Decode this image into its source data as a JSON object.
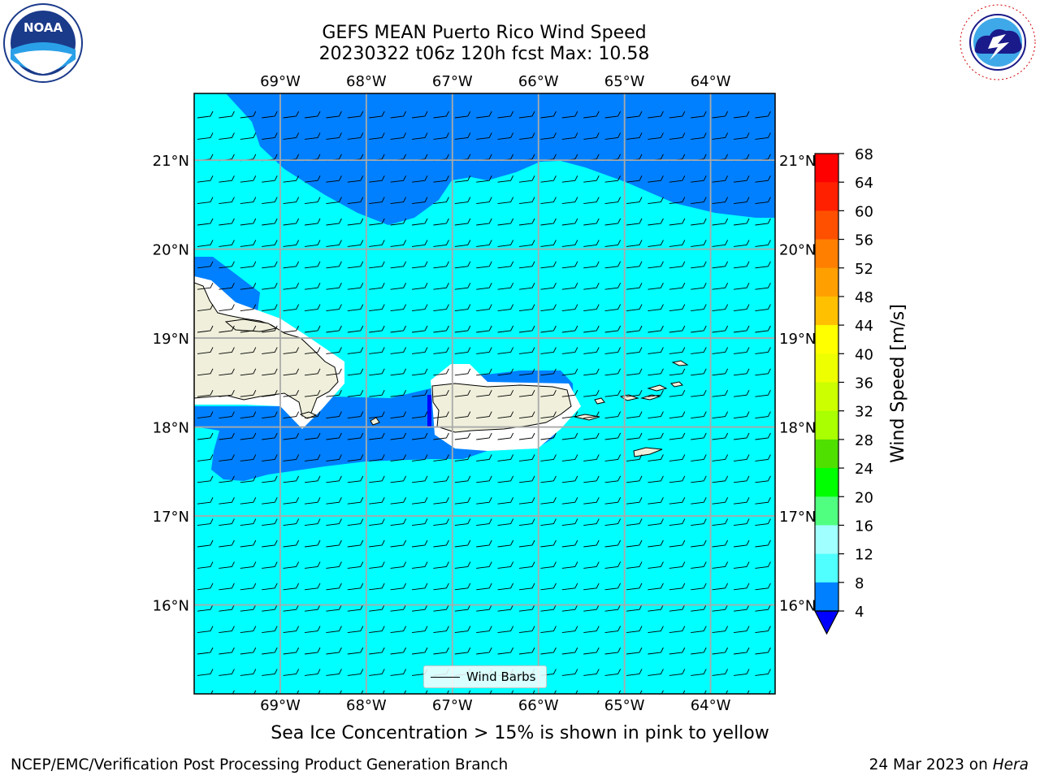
{
  "title": {
    "line1": "GEFS MEAN Puerto Rico Wind Speed",
    "line2": "20230322 t06z 120h fcst   Max: 10.58"
  },
  "map": {
    "lon_labels": [
      "69°W",
      "68°W",
      "67°W",
      "66°W",
      "65°W",
      "64°W"
    ],
    "lat_labels": [
      "21°N",
      "20°N",
      "19°N",
      "18°N",
      "17°N",
      "16°N"
    ],
    "lon_range": [
      -70.0,
      -63.25
    ],
    "lat_range": [
      15.0,
      21.75
    ],
    "ocean_color": "#00ffff",
    "low_wind_color": "#0080ff",
    "land_color": "#efefdb",
    "legend_label": "Wind Barbs"
  },
  "colorbar": {
    "label": "Wind Speed [m/s]",
    "ticks": [
      "68",
      "64",
      "60",
      "56",
      "52",
      "48",
      "44",
      "40",
      "36",
      "32",
      "28",
      "24",
      "20",
      "16",
      "12",
      "8",
      "4"
    ],
    "colors": [
      "#ff0000",
      "#ff2000",
      "#ff5000",
      "#ff8000",
      "#ffa000",
      "#ffc000",
      "#ffff00",
      "#eeff00",
      "#ccff00",
      "#aaff00",
      "#50e000",
      "#00ff00",
      "#50ff80",
      "#a0ffff",
      "#50ffff",
      "#00ffff",
      "#0080ff"
    ],
    "under_color": "#0000ff"
  },
  "caption": "Sea Ice Concentration > 15% is shown in pink to yellow",
  "footer": {
    "left": "NCEP/EMC/Verification Post Processing Product Generation Branch",
    "right_date": "24 Mar 2023 on",
    "right_host": "Hera"
  },
  "logos": {
    "noaa_text": "NOAA",
    "nws_text": "NATIONAL WEATHER SERVICE"
  }
}
